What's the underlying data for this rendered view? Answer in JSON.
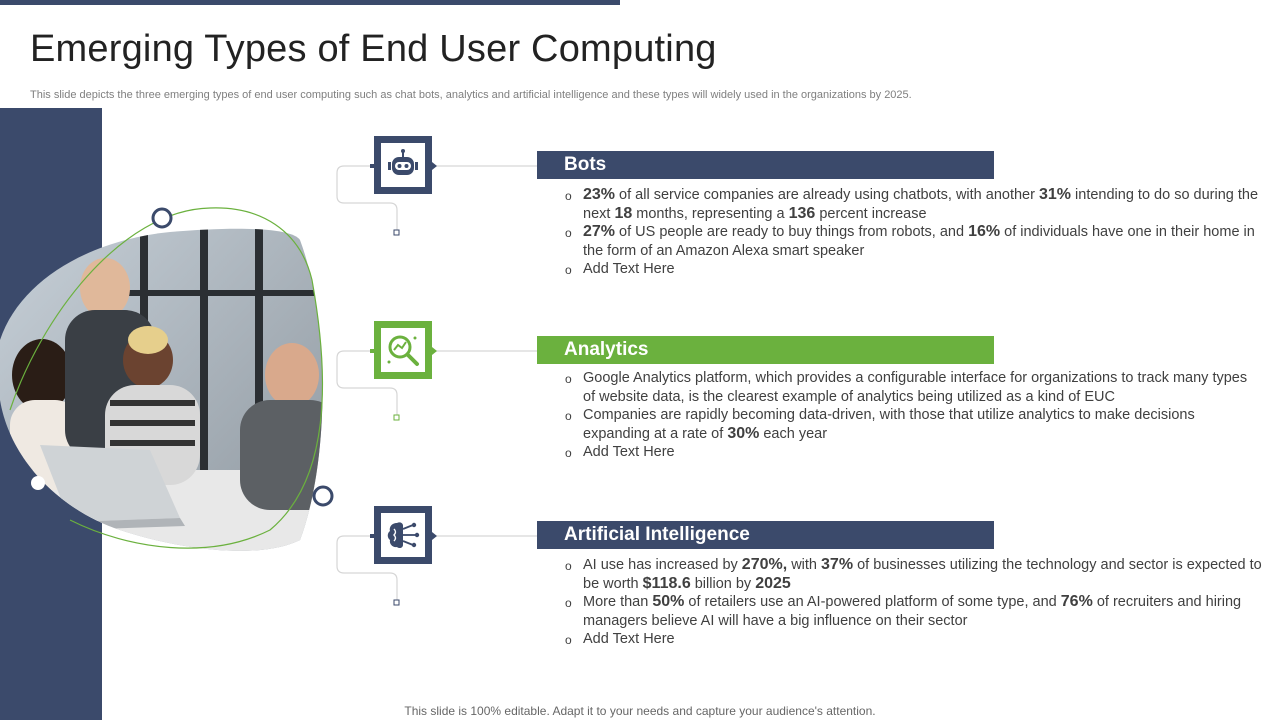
{
  "slide": {
    "title": "Emerging Types of End User Computing",
    "subtitle": "This slide depicts the three emerging types of end user computing such as chat bots, analytics and artificial intelligence and these types will widely used in the organizations by 2025.",
    "footer": "This slide is 100% editable. Adapt it to your needs and capture your audience's attention."
  },
  "colors": {
    "navy": "#3b4a6b",
    "green": "#6bb13e",
    "text": "#404040"
  },
  "sections": [
    {
      "heading": "Bots",
      "icon": "robot-icon",
      "bullets": [
        [
          "",
          "23%",
          " of all service companies are already using chatbots, with another ",
          "31%",
          " intending to do so during the next ",
          "18",
          " months, representing a ",
          "136",
          " percent increase"
        ],
        [
          "",
          "27%",
          " of US people are ready to buy things from robots, and ",
          "16%",
          " of individuals  have one in their home in the form of an Amazon Alexa  smart speaker"
        ],
        [
          "Add Text Here"
        ]
      ]
    },
    {
      "heading": "Analytics",
      "icon": "analytics-magnifier-icon",
      "bullets": [
        [
          "Google Analytics platform, which provides a configurable interface for organizations to track many types of website data, is the clearest example of analytics being utilized as a kind of EUC"
        ],
        [
          "Companies are rapidly  becoming data-driven, with those that utilize analytics to make decisions expanding  at a rate of ",
          "30%",
          " each year"
        ],
        [
          "Add Text Here"
        ]
      ]
    },
    {
      "heading": "Artificial Intelligence",
      "icon": "brain-circuit-icon",
      "bullets": [
        [
          "AI use has increased by ",
          "270%,",
          " with ",
          "37%",
          " of businesses utilizing the technology and sector is expected to be worth ",
          "$118.6",
          " billion  by ",
          "2025"
        ],
        [
          "More than ",
          "50%",
          " of retailers use an AI-powered platform of some type, and ",
          "76%",
          " of recruiters and hiring managers believe AI will have a big influence on their sector"
        ],
        [
          "Add Text Here"
        ]
      ]
    }
  ]
}
